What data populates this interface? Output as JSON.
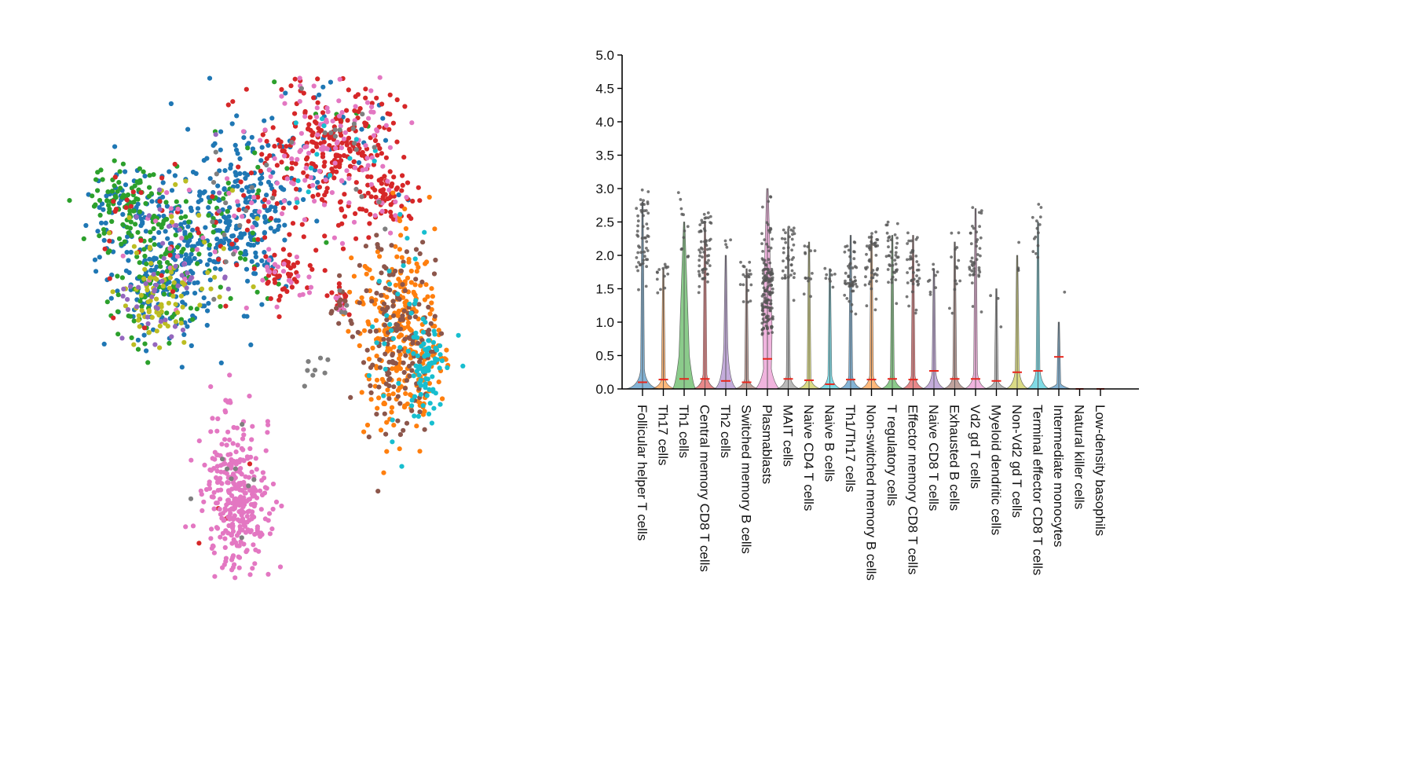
{
  "chart_data": [
    {
      "type": "scatter",
      "title": "",
      "xlabel": "",
      "ylabel": "",
      "axes_visible": false,
      "grid": false,
      "legend": "none",
      "series": [
        {
          "color": "#1f77b4",
          "points": []
        },
        {
          "color": "#2ca02c",
          "points": []
        },
        {
          "color": "#d62728",
          "points": []
        },
        {
          "color": "#e377c2",
          "points": []
        },
        {
          "color": "#ff7f0e",
          "points": []
        },
        {
          "color": "#8c564b",
          "points": []
        },
        {
          "color": "#17becf",
          "points": []
        },
        {
          "color": "#7f7f7f",
          "points": []
        },
        {
          "color": "#bcbd22",
          "points": []
        },
        {
          "color": "#9467bd",
          "points": []
        }
      ],
      "clusters": [
        {
          "center": [
            -4.2,
            5.5
          ],
          "spread": [
            1.0,
            0.85
          ],
          "n": 360,
          "weights": {
            "#1f77b4": 0.55,
            "#2ca02c": 0.25,
            "#bcbd22": 0.07,
            "#9467bd": 0.05,
            "#d62728": 0.04,
            "#e377c2": 0.04
          }
        },
        {
          "center": [
            -5.8,
            6.4
          ],
          "spread": [
            0.55,
            0.55
          ],
          "n": 170,
          "weights": {
            "#2ca02c": 0.6,
            "#1f77b4": 0.35,
            "#d62728": 0.05
          }
        },
        {
          "center": [
            -4.9,
            4.3
          ],
          "spread": [
            0.6,
            0.5
          ],
          "n": 170,
          "weights": {
            "#bcbd22": 0.35,
            "#9467bd": 0.2,
            "#2ca02c": 0.25,
            "#1f77b4": 0.2
          }
        },
        {
          "center": [
            -2.2,
            6.3
          ],
          "spread": [
            0.8,
            0.9
          ],
          "n": 280,
          "weights": {
            "#1f77b4": 0.75,
            "#2ca02c": 0.1,
            "#d62728": 0.06,
            "#e377c2": 0.05,
            "#7f7f7f": 0.04
          }
        },
        {
          "center": [
            0.5,
            7.7
          ],
          "spread": [
            1.0,
            0.85
          ],
          "n": 420,
          "weights": {
            "#d62728": 0.55,
            "#e377c2": 0.28,
            "#1f77b4": 0.08,
            "#7f7f7f": 0.04,
            "#17becf": 0.03,
            "#2ca02c": 0.02
          }
        },
        {
          "center": [
            2.3,
            6.7
          ],
          "spread": [
            0.35,
            0.3
          ],
          "n": 70,
          "weights": {
            "#d62728": 0.85,
            "#e377c2": 0.15
          }
        },
        {
          "center": [
            -0.8,
            4.9
          ],
          "spread": [
            0.45,
            0.35
          ],
          "n": 65,
          "weights": {
            "#d62728": 0.7,
            "#e377c2": 0.3
          }
        },
        {
          "center": [
            0.8,
            4.3
          ],
          "spread": [
            0.15,
            0.15
          ],
          "n": 40,
          "weights": {
            "#d62728": 0.45,
            "#8c564b": 0.3,
            "#7f7f7f": 0.15,
            "#e377c2": 0.1
          }
        },
        {
          "center": [
            2.6,
            3.5
          ],
          "spread": [
            0.6,
            1.15
          ],
          "n": 480,
          "weights": {
            "#ff7f0e": 0.55,
            "#8c564b": 0.35,
            "#17becf": 0.1
          }
        },
        {
          "center": [
            3.5,
            2.9
          ],
          "spread": [
            0.25,
            0.5
          ],
          "n": 90,
          "weights": {
            "#17becf": 0.75,
            "#ff7f0e": 0.15,
            "#8c564b": 0.1
          }
        },
        {
          "center": [
            -2.4,
            0.0
          ],
          "spread": [
            0.5,
            0.8
          ],
          "n": 340,
          "weights": {
            "#e377c2": 0.96,
            "#7f7f7f": 0.02,
            "#d62728": 0.02
          }
        },
        {
          "center": [
            0.0,
            2.8
          ],
          "spread": [
            0.25,
            0.25
          ],
          "n": 8,
          "weights": {
            "#7f7f7f": 1.0
          }
        }
      ]
    },
    {
      "type": "violin",
      "title": "",
      "xlabel": "",
      "ylabel": "",
      "ylim": [
        0,
        5
      ],
      "y_ticks": [
        "0.0",
        "0.5",
        "1.0",
        "1.5",
        "2.0",
        "2.5",
        "3.0",
        "3.5",
        "4.0",
        "4.5",
        "5.0"
      ],
      "grid": false,
      "legend": "none",
      "mean_marker_color": "#e8261c",
      "point_color": "#555555",
      "categories": [
        "Follicular helper T cells",
        "Th17 cells",
        "Th1 cells",
        "Central memory CD8 T cells",
        "Th2 cells",
        "Switched memory B cells",
        "Plasmablasts",
        "MAIT cells",
        "Naive CD4 T cells",
        "Naive B cells",
        "Th1/Th17 cells",
        "Non-switched memory B cells",
        "T regulatory cells",
        "Effector memory CD8 T cells",
        "Naive CD8 T cells",
        "Exhausted B cells",
        "Vd2 gd T cells",
        "Myeloid dendritic cells",
        "Non-Vd2 gd T cells",
        "Terminal effector CD8 T cells",
        "Intermediate monocytes",
        "Natural killer cells",
        "Low-density basophils"
      ],
      "colors": [
        "#1f77b4",
        "#ff7f0e",
        "#2ca02c",
        "#d62728",
        "#9467bd",
        "#8c564b",
        "#e377c2",
        "#7f7f7f",
        "#bcbd22",
        "#17becf",
        "#1f77b4",
        "#ff7f0e",
        "#2ca02c",
        "#d62728",
        "#9467bd",
        "#8c564b",
        "#e377c2",
        "#7f7f7f",
        "#bcbd22",
        "#17becf",
        "#1f77b4",
        "#ff7f0e",
        "#2ca02c"
      ],
      "means": [
        0.1,
        0.14,
        0.15,
        0.15,
        0.12,
        0.1,
        0.45,
        0.15,
        0.13,
        0.07,
        0.14,
        0.14,
        0.15,
        0.14,
        0.27,
        0.15,
        0.15,
        0.12,
        0.25,
        0.27,
        0.48,
        0.0,
        0.0
      ],
      "max": [
        2.8,
        1.8,
        2.5,
        2.5,
        2.0,
        1.8,
        3.0,
        2.4,
        2.2,
        1.8,
        2.3,
        2.3,
        2.3,
        2.3,
        1.8,
        2.2,
        2.7,
        1.5,
        2.0,
        2.5,
        1.0,
        0.0,
        0.0
      ],
      "bulge_height": [
        0.3,
        0.15,
        0.5,
        0.22,
        0.7,
        0.15,
        1.75,
        0.2,
        0.15,
        0.2,
        0.2,
        0.2,
        0.2,
        0.2,
        0.25,
        0.2,
        0.25,
        0.12,
        0.3,
        0.3,
        0.0,
        0.0,
        0.0
      ],
      "points_expressing": [
        52,
        14,
        12,
        60,
        4,
        18,
        150,
        38,
        14,
        9,
        48,
        45,
        40,
        40,
        9,
        14,
        42,
        3,
        4,
        14,
        1,
        0,
        0
      ],
      "points_range": [
        [
          1.15,
          3.0
        ],
        [
          1.3,
          1.9
        ],
        [
          1.4,
          2.97
        ],
        [
          1.1,
          2.65
        ],
        [
          1.8,
          2.28
        ],
        [
          1.3,
          1.9
        ],
        [
          0.7,
          3.05
        ],
        [
          1.2,
          2.5
        ],
        [
          1.2,
          2.2
        ],
        [
          1.5,
          1.9
        ],
        [
          1.1,
          2.3
        ],
        [
          1.1,
          2.35
        ],
        [
          1.1,
          2.5
        ],
        [
          1.1,
          2.35
        ],
        [
          1.3,
          1.9
        ],
        [
          1.0,
          2.35
        ],
        [
          1.1,
          2.75
        ],
        [
          0.6,
          1.5
        ],
        [
          1.3,
          2.25
        ],
        [
          1.5,
          2.8
        ],
        [
          1.45,
          1.45
        ],
        [
          0,
          0
        ],
        [
          0,
          0
        ]
      ]
    }
  ]
}
